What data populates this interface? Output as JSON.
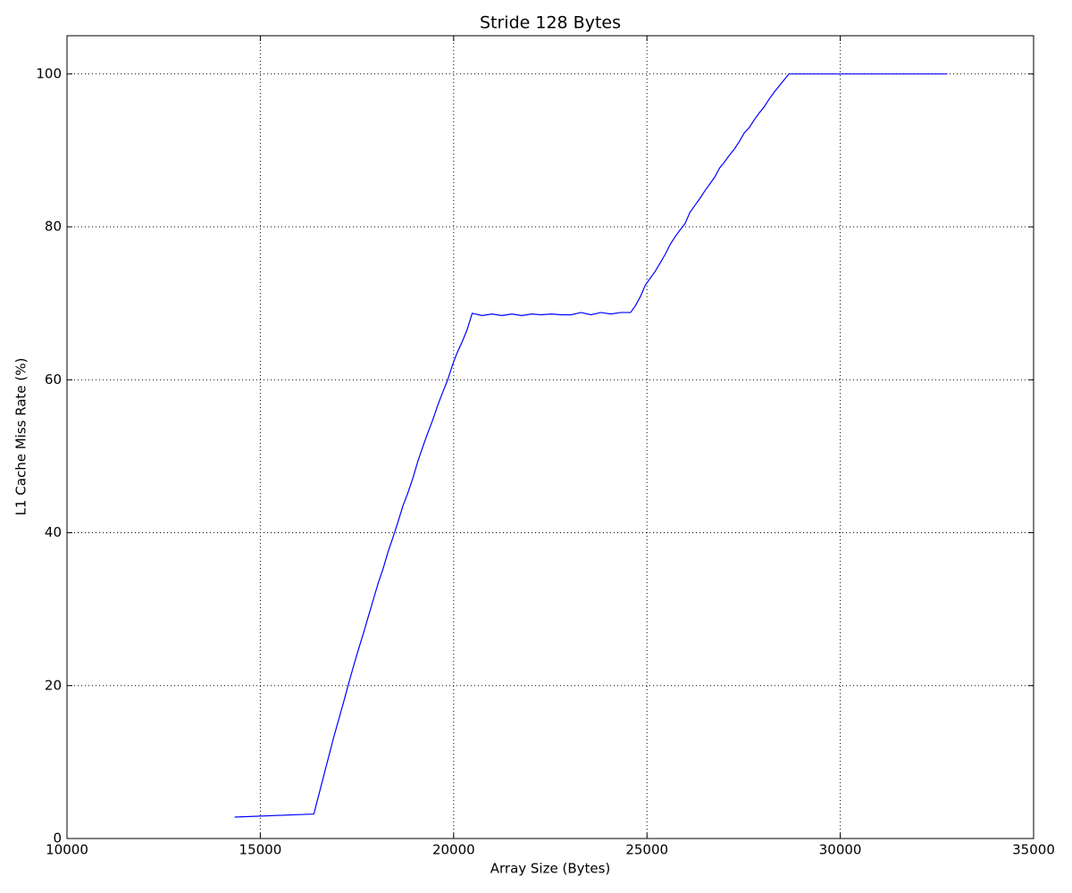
{
  "chart_data": {
    "type": "line",
    "title": "Stride 128 Bytes",
    "x_label": "Array Size (Bytes)",
    "y_label": "L1 Cache Miss Rate (%)",
    "x": [
      14336,
      16384,
      16512,
      16640,
      16768,
      16896,
      17024,
      17152,
      17280,
      17408,
      17536,
      17664,
      17792,
      17920,
      18048,
      18176,
      18304,
      18432,
      18560,
      18688,
      18816,
      18944,
      19072,
      19200,
      19328,
      19456,
      19584,
      19712,
      19840,
      19968,
      20096,
      20224,
      20352,
      20480,
      20736,
      20992,
      21248,
      21504,
      21760,
      22016,
      22272,
      22528,
      22784,
      23040,
      23296,
      23552,
      23808,
      24064,
      24320,
      24576,
      24704,
      24832,
      24960,
      25088,
      25216,
      25344,
      25472,
      25600,
      25728,
      25856,
      25984,
      26112,
      26240,
      26368,
      26496,
      26624,
      26752,
      26880,
      27008,
      27136,
      27264,
      27392,
      27520,
      27648,
      27776,
      27904,
      28032,
      28160,
      28288,
      28416,
      28544,
      28672,
      32768
    ],
    "series": [
      {
        "name": "miss rate",
        "color": "#0000ff",
        "values": [
          2.8,
          3.2,
          5.7,
          8.2,
          10.7,
          13.2,
          15.5,
          17.8,
          20.2,
          22.5,
          24.7,
          26.8,
          29.0,
          31.2,
          33.4,
          35.3,
          37.5,
          39.4,
          41.4,
          43.5,
          45.2,
          47.1,
          49.3,
          51.2,
          53.0,
          54.7,
          56.6,
          58.3,
          59.9,
          61.9,
          63.6,
          65.0,
          66.6,
          68.7,
          68.4,
          68.6,
          68.4,
          68.6,
          68.4,
          68.6,
          68.5,
          68.6,
          68.5,
          68.5,
          68.8,
          68.5,
          68.8,
          68.6,
          68.8,
          68.8,
          69.7,
          70.9,
          72.4,
          73.3,
          74.2,
          75.3,
          76.4,
          77.7,
          78.7,
          79.6,
          80.4,
          81.9,
          82.8,
          83.7,
          84.7,
          85.6,
          86.5,
          87.7,
          88.5,
          89.4,
          90.2,
          91.2,
          92.3,
          93.0,
          94.0,
          94.9,
          95.7,
          96.7,
          97.6,
          98.4,
          99.2,
          100.0,
          100.0
        ]
      }
    ],
    "xlim": [
      10000,
      35000
    ],
    "ylim": [
      0,
      105
    ],
    "xticks": [
      10000,
      15000,
      20000,
      25000,
      30000,
      35000
    ],
    "yticks": [
      0,
      20,
      40,
      60,
      80,
      100
    ],
    "grid": true
  }
}
